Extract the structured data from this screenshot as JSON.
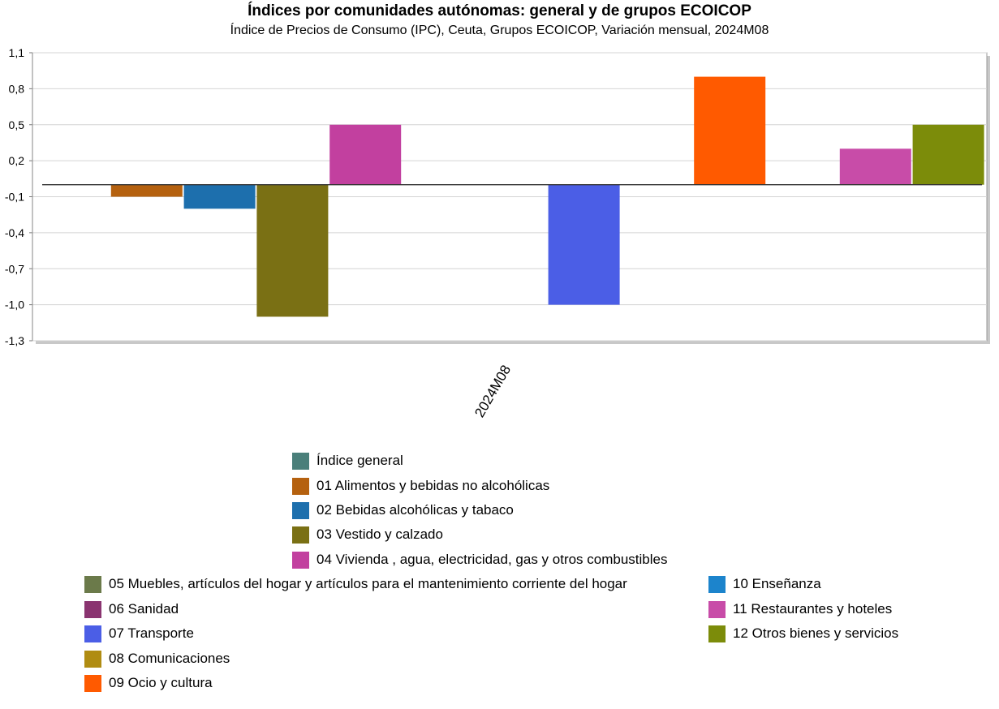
{
  "chart_data": {
    "type": "bar",
    "title": "Índices por comunidades autónomas: general y de grupos ECOICOP",
    "subtitle": "Índice de Precios de Consumo (IPC), Ceuta, Grupos ECOICOP, Variación mensual, 2024M08",
    "categories": [
      "2024M08"
    ],
    "ylim": [
      -1.3,
      1.1
    ],
    "yticks": [
      "1,1",
      "0,8",
      "0,5",
      "0,2",
      "-0,1",
      "-0,4",
      "-0,7",
      "-1,0",
      "-1,3"
    ],
    "grid": true,
    "legend_position": "bottom",
    "series": [
      {
        "name": "Índice general",
        "color": "#4a7f7a",
        "values": [
          0.0
        ]
      },
      {
        "name": "01 Alimentos y bebidas no alcohólicas",
        "color": "#b5610f",
        "values": [
          -0.1
        ]
      },
      {
        "name": "02 Bebidas alcohólicas y tabaco",
        "color": "#1d6fad",
        "values": [
          -0.2
        ]
      },
      {
        "name": "03 Vestido y calzado",
        "color": "#7a7014",
        "values": [
          -1.1
        ]
      },
      {
        "name": "04 Vivienda , agua, electricidad, gas y otros combustibles",
        "color": "#c2409f",
        "values": [
          0.5
        ]
      },
      {
        "name": "05 Muebles, artículos del hogar y artículos para el mantenimiento corriente del hogar",
        "color": "#6b7a4a",
        "values": [
          0.0
        ]
      },
      {
        "name": "06 Sanidad",
        "color": "#8a3470",
        "values": [
          0.0
        ]
      },
      {
        "name": "07 Transporte",
        "color": "#4b5ee6",
        "values": [
          -1.0
        ]
      },
      {
        "name": "08 Comunicaciones",
        "color": "#b08c12",
        "values": [
          0.0
        ]
      },
      {
        "name": "09 Ocio y cultura",
        "color": "#ff5a00",
        "values": [
          0.9
        ]
      },
      {
        "name": "10 Enseñanza",
        "color": "#1c84cc",
        "values": [
          0.0
        ]
      },
      {
        "name": "11 Restaurantes y hoteles",
        "color": "#c84ca8",
        "values": [
          0.3
        ]
      },
      {
        "name": "12 Otros bienes y servicios",
        "color": "#7c8c0a",
        "values": [
          0.5
        ]
      }
    ]
  }
}
